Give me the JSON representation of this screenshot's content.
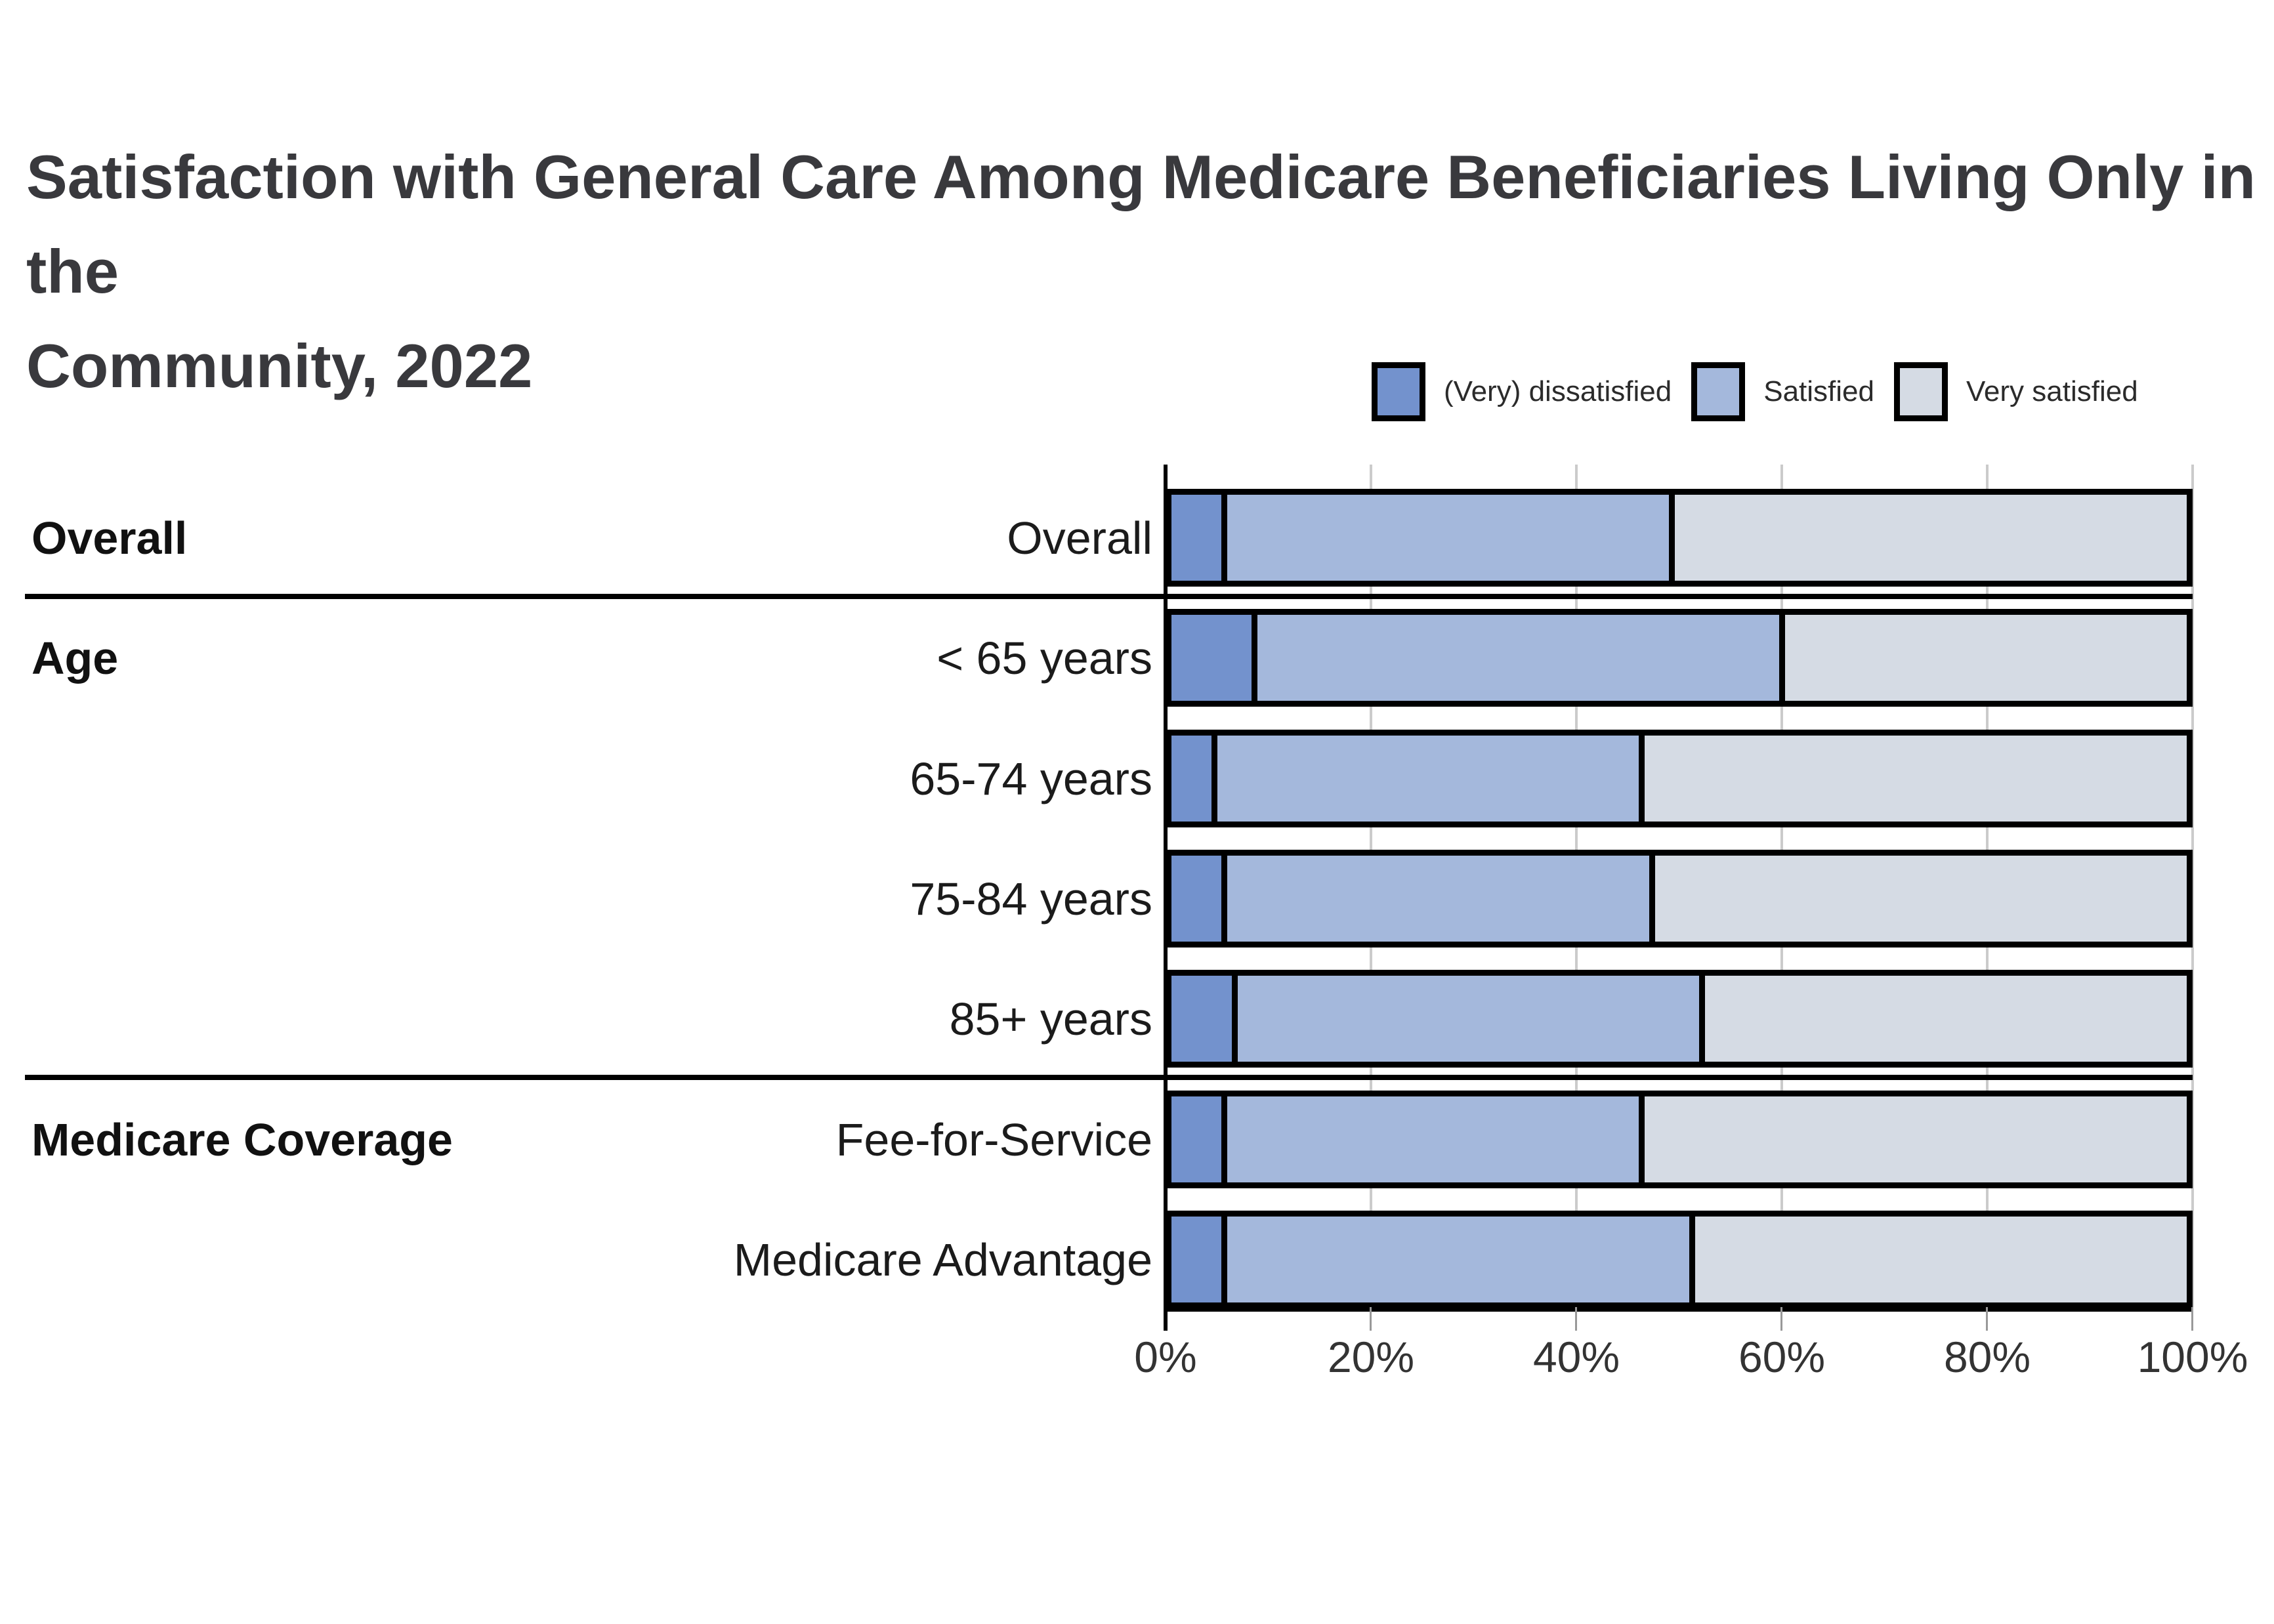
{
  "page": {
    "background": "#ffffff"
  },
  "header": {
    "title_line1": "Satisfaction with General Care Among Medicare Beneficiaries Living Only in the",
    "title_line2": "Community, 2022",
    "title_color": "#39393d"
  },
  "legend": {
    "position": "top-right",
    "items": [
      {
        "label": "(Very) dissatisfied",
        "color": "#7392CD"
      },
      {
        "label": "Satisfied",
        "color": "#A4B8DC"
      },
      {
        "label": "Very satisfied",
        "color": "#D5DBE4"
      }
    ]
  },
  "chart_data": {
    "type": "bar",
    "orientation": "horizontal",
    "stacked": true,
    "units": "percent",
    "title": "Satisfaction with General Care Among Medicare Beneficiaries Living Only in the Community, 2022",
    "categories": [
      "Overall",
      "< 65 years",
      "65-74 years",
      "75-84 years",
      "85+ years",
      "Fee-for-Service",
      "Medicare Advantage"
    ],
    "groups": [
      {
        "label": "Overall",
        "first_row": 0,
        "row_count": 1
      },
      {
        "label": "Age",
        "first_row": 1,
        "row_count": 4
      },
      {
        "label": "Medicare Coverage",
        "first_row": 5,
        "row_count": 2
      }
    ],
    "series": [
      {
        "name": "(Very) dissatisfied",
        "color": "#7392CD",
        "values": [
          5,
          8,
          4,
          5,
          6,
          5,
          5
        ]
      },
      {
        "name": "Satisfied",
        "color": "#A4B8DC",
        "values": [
          44,
          52,
          42,
          42,
          46,
          41,
          46
        ]
      },
      {
        "name": "Very satisfied",
        "color": "#D5DBE4",
        "values": [
          51,
          40,
          54,
          53,
          48,
          54,
          49
        ]
      }
    ],
    "x_axis": {
      "tick_labels": [
        "0%",
        "20%",
        "40%",
        "60%",
        "80%",
        "100%"
      ],
      "min": 0,
      "max": 100
    },
    "grid": "vertical",
    "legend_position": "top-right"
  }
}
